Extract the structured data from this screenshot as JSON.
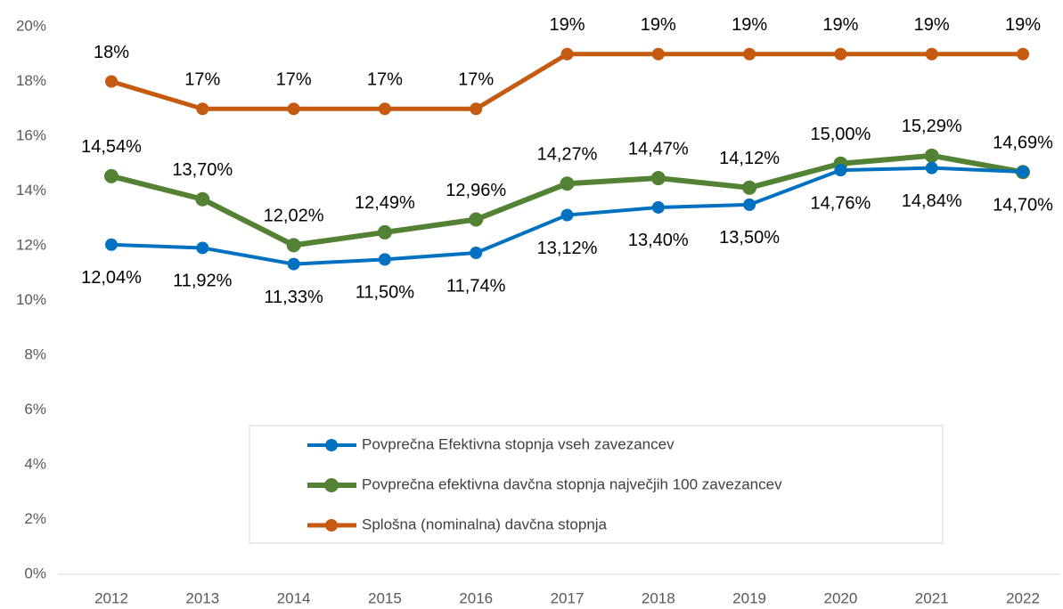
{
  "chart_data": {
    "type": "line",
    "categories": [
      "2012",
      "2013",
      "2014",
      "2015",
      "2016",
      "2017",
      "2018",
      "2019",
      "2020",
      "2021",
      "2022"
    ],
    "series": [
      {
        "name": "Povprečna Efektivna stopnja vseh zavezancev",
        "color": "#0070c0",
        "values": [
          12.04,
          11.92,
          11.33,
          11.5,
          11.74,
          13.12,
          13.4,
          13.5,
          14.76,
          14.84,
          14.7
        ],
        "value_labels": [
          "12,04%",
          "11,92%",
          "11,33%",
          "11,50%",
          "11,74%",
          "13,12%",
          "13,40%",
          "13,50%",
          "14,76%",
          "14,84%",
          "14,70%"
        ]
      },
      {
        "name": "Povprečna efektivna davčna stopnja največjih 100 zavezancev",
        "color": "#548235",
        "values": [
          14.54,
          13.7,
          12.02,
          12.49,
          12.96,
          14.27,
          14.47,
          14.12,
          15.0,
          15.29,
          14.69
        ],
        "value_labels": [
          "14,54%",
          "13,70%",
          "12,02%",
          "12,49%",
          "12,96%",
          "14,27%",
          "14,47%",
          "14,12%",
          "15,00%",
          "15,29%",
          "14,69%"
        ]
      },
      {
        "name": "Splošna (nominalna) davčna stopnja",
        "color": "#c55a11",
        "values": [
          18,
          17,
          17,
          17,
          17,
          19,
          19,
          19,
          19,
          19,
          19
        ],
        "value_labels": [
          "18%",
          "17%",
          "17%",
          "17%",
          "17%",
          "19%",
          "19%",
          "19%",
          "19%",
          "19%",
          "19%"
        ]
      }
    ],
    "ylim": [
      0,
      20
    ],
    "yticks": [
      {
        "value": 0,
        "label": "0%"
      },
      {
        "value": 2,
        "label": "2%"
      },
      {
        "value": 4,
        "label": "4%"
      },
      {
        "value": 6,
        "label": "6%"
      },
      {
        "value": 8,
        "label": "8%"
      },
      {
        "value": 10,
        "label": "10%"
      },
      {
        "value": 12,
        "label": "12%"
      },
      {
        "value": 14,
        "label": "14%"
      },
      {
        "value": 16,
        "label": "16%"
      },
      {
        "value": 18,
        "label": "18%"
      },
      {
        "value": 20,
        "label": "20%"
      }
    ],
    "grid": false
  }
}
